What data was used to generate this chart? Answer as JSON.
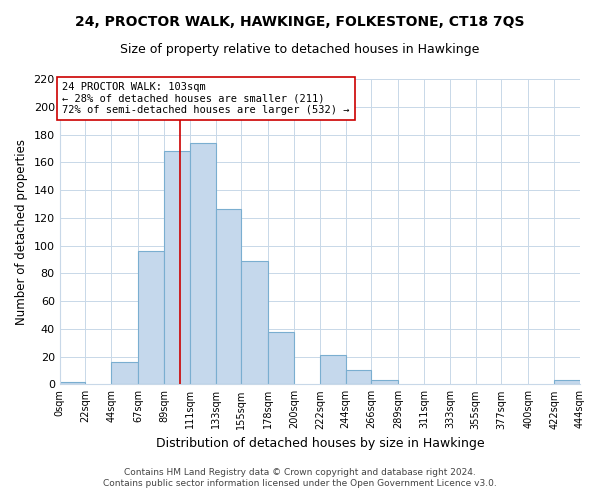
{
  "title": "24, PROCTOR WALK, HAWKINGE, FOLKESTONE, CT18 7QS",
  "subtitle": "Size of property relative to detached houses in Hawkinge",
  "xlabel": "Distribution of detached houses by size in Hawkinge",
  "ylabel": "Number of detached properties",
  "bar_color": "#c5d8ec",
  "bar_edge_color": "#7aaed0",
  "background_color": "#ffffff",
  "grid_color": "#c8d8e8",
  "bin_edges": [
    0,
    22,
    44,
    67,
    89,
    111,
    133,
    155,
    178,
    200,
    222,
    244,
    266,
    289,
    311,
    333,
    355,
    377,
    400,
    422,
    444
  ],
  "bin_labels": [
    "0sqm",
    "22sqm",
    "44sqm",
    "67sqm",
    "89sqm",
    "111sqm",
    "133sqm",
    "155sqm",
    "178sqm",
    "200sqm",
    "222sqm",
    "244sqm",
    "266sqm",
    "289sqm",
    "311sqm",
    "333sqm",
    "355sqm",
    "377sqm",
    "400sqm",
    "422sqm",
    "444sqm"
  ],
  "bar_heights": [
    2,
    0,
    16,
    96,
    168,
    174,
    126,
    89,
    38,
    0,
    21,
    10,
    3,
    0,
    0,
    0,
    0,
    0,
    0,
    3
  ],
  "property_value": 103,
  "red_line_x": 103,
  "annotation_title": "24 PROCTOR WALK: 103sqm",
  "annotation_line1": "← 28% of detached houses are smaller (211)",
  "annotation_line2": "72% of semi-detached houses are larger (532) →",
  "ylim": [
    0,
    220
  ],
  "yticks": [
    0,
    20,
    40,
    60,
    80,
    100,
    120,
    140,
    160,
    180,
    200,
    220
  ],
  "footer_line1": "Contains HM Land Registry data © Crown copyright and database right 2024.",
  "footer_line2": "Contains public sector information licensed under the Open Government Licence v3.0."
}
